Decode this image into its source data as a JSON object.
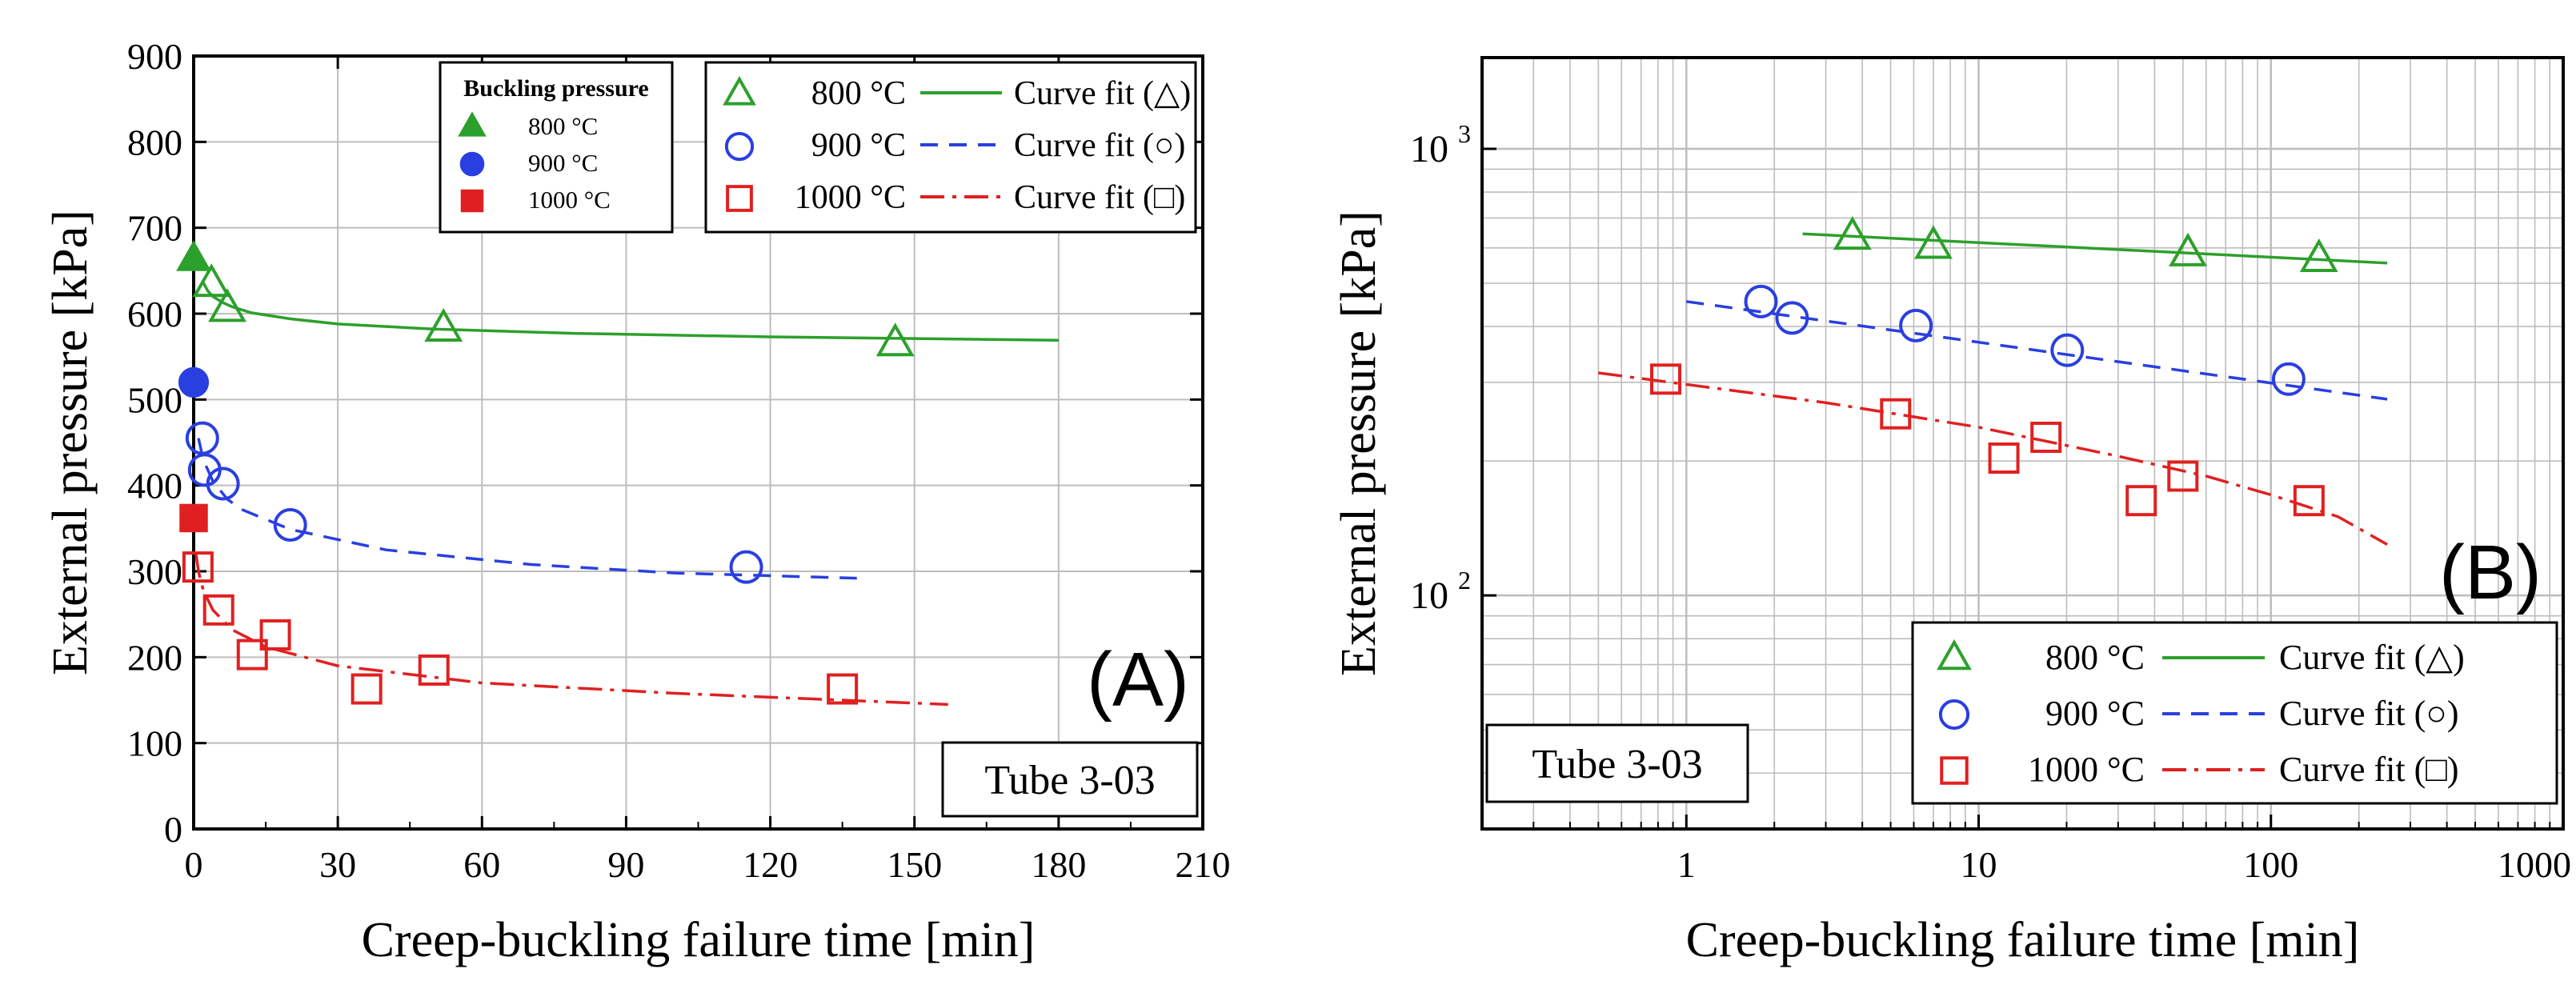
{
  "colors": {
    "s800": "#2ca02c",
    "s900": "#2a3fe0",
    "s1000": "#e02020",
    "axis": "#000000",
    "grid": "#bdbdbd"
  },
  "chart_data": [
    {
      "panel": "A",
      "type": "scatter",
      "panel_label": "(A)",
      "annotation": "Tube 3-03",
      "xlabel": "Creep-buckling failure time [min]",
      "ylabel": "External pressure [kPa]",
      "xscale": "linear",
      "yscale": "linear",
      "xlim": [
        0,
        210
      ],
      "ylim": [
        0,
        900
      ],
      "xticks": [
        0,
        30,
        60,
        90,
        120,
        150,
        180,
        210
      ],
      "yticks": [
        0,
        100,
        200,
        300,
        400,
        500,
        600,
        700,
        800,
        900
      ],
      "grid": true,
      "legend_placement": "top-center",
      "buckling_legend_title": "Buckling pressure",
      "buckling": [
        {
          "name": "800 °C",
          "marker": "filled-triangle",
          "color": "#2ca02c",
          "x": 0,
          "y": 663
        },
        {
          "name": "900 °C",
          "marker": "filled-circle",
          "color": "#2a3fe0",
          "x": 0,
          "y": 520
        },
        {
          "name": "1000 °C",
          "marker": "filled-square",
          "color": "#e02020",
          "x": 0,
          "y": 362
        }
      ],
      "series": [
        {
          "name": "800 °C",
          "marker": "triangle",
          "color": "#2ca02c",
          "x": [
            3.7,
            7,
            52,
            146
          ],
          "y": [
            634,
            605,
            582,
            565
          ],
          "fit_label": "Curve fit (△)",
          "fit_style": "solid",
          "fit_x": [
            2,
            3,
            4,
            6,
            8,
            12,
            20,
            30,
            50,
            80,
            120,
            180
          ],
          "fit_y": [
            636,
            626,
            620,
            613,
            608,
            601,
            594,
            588,
            582,
            577,
            573,
            569
          ]
        },
        {
          "name": "900 °C",
          "marker": "circle",
          "color": "#2a3fe0",
          "x": [
            1.8,
            2.3,
            6.1,
            20.1,
            115
          ],
          "y": [
            455,
            418,
            402,
            354,
            305
          ],
          "fit_label": "Curve fit (○)",
          "fit_style": "dashed",
          "fit_x": [
            1,
            2,
            4,
            7,
            10,
            20,
            40,
            70,
            100,
            138
          ],
          "fit_y": [
            455,
            430,
            405,
            384,
            372,
            349,
            325,
            308,
            298,
            292
          ]
        },
        {
          "name": "1000 °C",
          "marker": "square",
          "color": "#e02020",
          "x": [
            0.9,
            5.2,
            12.2,
            17,
            36,
            50,
            135
          ],
          "y": [
            305,
            255,
            203,
            226,
            163,
            185,
            163
          ],
          "fit_label": "Curve fit (□)",
          "fit_style": "dash-dot",
          "fit_x": [
            0.5,
            1,
            2,
            4,
            8,
            15,
            30,
            60,
            100,
            157
          ],
          "fit_y": [
            320,
            300,
            278,
            255,
            232,
            212,
            190,
            170,
            158,
            145
          ]
        }
      ]
    },
    {
      "panel": "B",
      "type": "scatter",
      "panel_label": "(B)",
      "annotation": "Tube 3-03",
      "xlabel": "Creep-buckling failure time [min]",
      "ylabel": "External pressure [kPa]",
      "xscale": "log",
      "yscale": "log",
      "xlim": [
        0.2,
        1000
      ],
      "ylim": [
        30,
        1600
      ],
      "xtick_labels": [
        "1",
        "10",
        "100",
        "1000"
      ],
      "ytick_labels": [
        {
          "base": "10",
          "exp": "2"
        },
        {
          "base": "10",
          "exp": "3"
        }
      ],
      "grid": true,
      "legend_placement": "bottom-right",
      "series": [
        {
          "name": "800 °C",
          "marker": "triangle",
          "color": "#2ca02c",
          "x": [
            3.7,
            7,
            52,
            146
          ],
          "y": [
            634,
            605,
            582,
            565
          ],
          "fit_label": "Curve fit (△)",
          "fit_style": "solid",
          "fit_x": [
            2.5,
            250
          ],
          "fit_y": [
            645,
            555
          ]
        },
        {
          "name": "900 °C",
          "marker": "circle",
          "color": "#2a3fe0",
          "x": [
            1.8,
            2.3,
            6.1,
            20.1,
            115
          ],
          "y": [
            455,
            418,
            402,
            354,
            305
          ],
          "fit_label": "Curve fit (○)",
          "fit_style": "dashed",
          "fit_x": [
            1,
            250
          ],
          "fit_y": [
            455,
            275
          ]
        },
        {
          "name": "1000 °C",
          "marker": "square",
          "color": "#e02020",
          "x": [
            0.85,
            5.2,
            12.2,
            17,
            36,
            50,
            135
          ],
          "y": [
            305,
            255,
            203,
            226,
            163,
            185,
            163
          ],
          "fit_label": "Curve fit (□)",
          "fit_style": "dash-dot",
          "fit_x": [
            0.5,
            3,
            10,
            30,
            60,
            100,
            170,
            250
          ],
          "fit_y": [
            315,
            270,
            238,
            205,
            185,
            168,
            150,
            130
          ]
        }
      ]
    }
  ]
}
